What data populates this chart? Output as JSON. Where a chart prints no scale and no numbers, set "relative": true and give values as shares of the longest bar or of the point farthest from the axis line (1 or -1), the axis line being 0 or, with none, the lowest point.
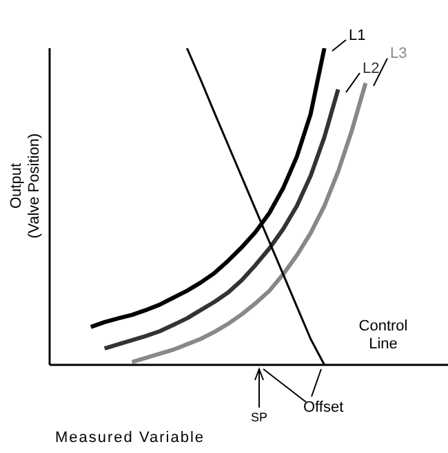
{
  "chart_data": {
    "type": "line",
    "relative": true,
    "marker": "none",
    "xlabel": "Measured Variable",
    "ylabel": "Output\n(Valve Position)",
    "categories": [
      null,
      null,
      null,
      null,
      null,
      null,
      null,
      null,
      null,
      null,
      null,
      null,
      null,
      null,
      null,
      null,
      null,
      null,
      null,
      null,
      null,
      null,
      null,
      null,
      null,
      null,
      null,
      null,
      null,
      null
    ],
    "series": [
      {
        "name": "L1",
        "color": "#000000",
        "values": [
          null,
          null,
          null,
          0.12,
          0.135,
          0.147,
          0.158,
          0.173,
          0.19,
          0.212,
          0.234,
          0.26,
          0.29,
          0.329,
          0.372,
          0.42,
          0.48,
          0.558,
          0.658,
          0.792,
          1,
          null,
          null,
          null,
          null,
          null,
          null,
          null,
          null,
          null
        ]
      },
      {
        "name": "L2",
        "color": "#333333",
        "values": [
          null,
          null,
          null,
          null,
          0.052,
          0.065,
          0.078,
          0.091,
          0.106,
          0.126,
          0.147,
          0.173,
          0.199,
          0.229,
          0.268,
          0.316,
          0.368,
          0.429,
          0.502,
          0.597,
          0.719,
          0.87,
          null,
          null,
          null,
          null,
          null,
          null,
          null,
          null
        ]
      },
      {
        "name": "L3",
        "color": "#888888",
        "values": [
          null,
          null,
          null,
          null,
          null,
          null,
          0.009,
          0.022,
          0.035,
          0.048,
          0.065,
          0.082,
          0.104,
          0.13,
          0.16,
          0.195,
          0.234,
          0.286,
          0.346,
          0.416,
          0.502,
          0.61,
          0.74,
          0.89,
          null,
          null,
          null,
          null,
          null,
          null
        ]
      },
      {
        "name": "Control Line",
        "color": "#000000",
        "values": [
          null,
          null,
          null,
          null,
          null,
          null,
          null,
          null,
          null,
          null,
          1,
          0.9,
          0.796,
          0.694,
          0.592,
          0.49,
          0.388,
          0.286,
          0.184,
          0.082,
          0,
          null,
          null,
          null,
          null,
          null,
          null,
          null,
          null,
          null
        ]
      }
    ],
    "annotations": [
      "SP",
      "Offset"
    ]
  }
}
